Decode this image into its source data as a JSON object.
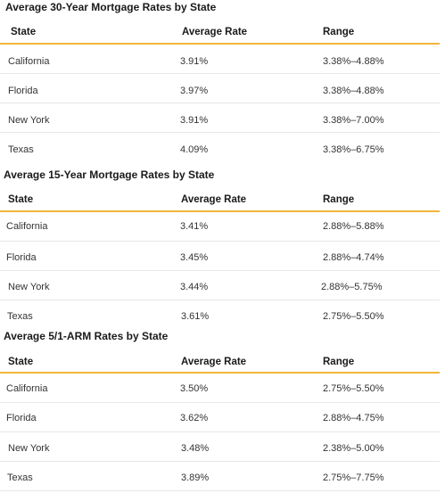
{
  "tables": [
    {
      "title": "Average 30-Year Mortgage Rates by State",
      "headers": [
        "State",
        "Average Rate",
        "Range"
      ],
      "rows": [
        [
          "California",
          "3.91%",
          "3.38%–4.88%"
        ],
        [
          "Florida",
          "3.97%",
          "3.38%–4.88%"
        ],
        [
          "New York",
          "3.91%",
          "3.38%–7.00%"
        ],
        [
          "Texas",
          "4.09%",
          "3.38%–6.75%"
        ]
      ]
    },
    {
      "title": "Average 15-Year Mortgage Rates by State",
      "headers": [
        "State",
        "Average Rate",
        "Range"
      ],
      "rows": [
        [
          "California",
          "3.41%",
          "2.88%–5.88%"
        ],
        [
          "Florida",
          "3.45%",
          "2.88%–4.74%"
        ],
        [
          "New York",
          "3.44%",
          "2.88%–5.75%"
        ],
        [
          "Texas",
          "3.61%",
          "2.75%–5.50%"
        ]
      ]
    },
    {
      "title": "Average 5/1-ARM Rates by State",
      "headers": [
        "State",
        "Average Rate",
        "Range"
      ],
      "rows": [
        [
          "California",
          "3.50%",
          "2.75%–5.50%"
        ],
        [
          "Florida",
          "3.62%",
          "2.88%–4.75%"
        ],
        [
          "New York",
          "3.48%",
          "2.38%–5.00%"
        ],
        [
          "Texas",
          "3.89%",
          "2.75%–7.75%"
        ]
      ]
    }
  ],
  "colors": {
    "header_rule": "#f2b53a",
    "row_rule": "#e6e6e6"
  }
}
